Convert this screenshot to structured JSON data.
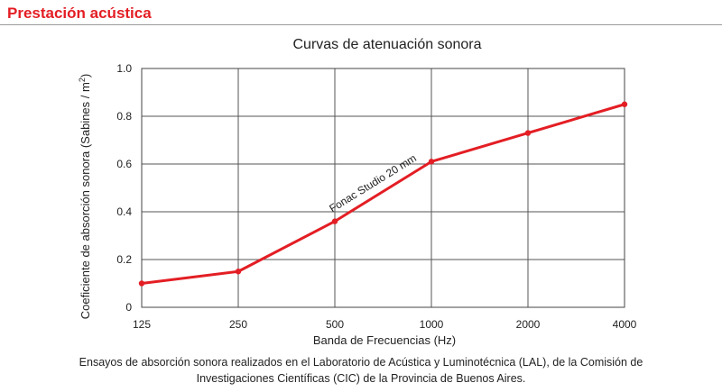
{
  "section": {
    "title": "Prestación acústica"
  },
  "chart_data": {
    "type": "line",
    "title": "Curvas de atenuación sonora",
    "xlabel": "Banda de Frecuencias (Hz)",
    "ylabel_main": "Coeficiente de absorción sonora (Sabines / m",
    "ylabel_sup": "2",
    "ylabel_close": ")",
    "categories": [
      "125",
      "250",
      "500",
      "1000",
      "2000",
      "4000"
    ],
    "yticks": [
      "0",
      "0.2",
      "0.4",
      "0.6",
      "0.8",
      "1.0"
    ],
    "ytick_values": [
      0,
      0.2,
      0.4,
      0.6,
      0.8,
      1.0
    ],
    "ylim": [
      0,
      1.0
    ],
    "grid": true,
    "series": [
      {
        "name": "Fonac Studio 20 mm",
        "values": [
          0.1,
          0.15,
          0.36,
          0.61,
          0.73,
          0.85
        ],
        "color": "#e31e24"
      }
    ]
  },
  "footnote": {
    "line1": "Ensayos de absorción sonora realizados en el Laboratorio de Acústica y Luminotécnica (LAL), de la Comisión de",
    "line2": "Investigaciones Científicas (CIC) de la Provincia de Buenos Aires."
  }
}
